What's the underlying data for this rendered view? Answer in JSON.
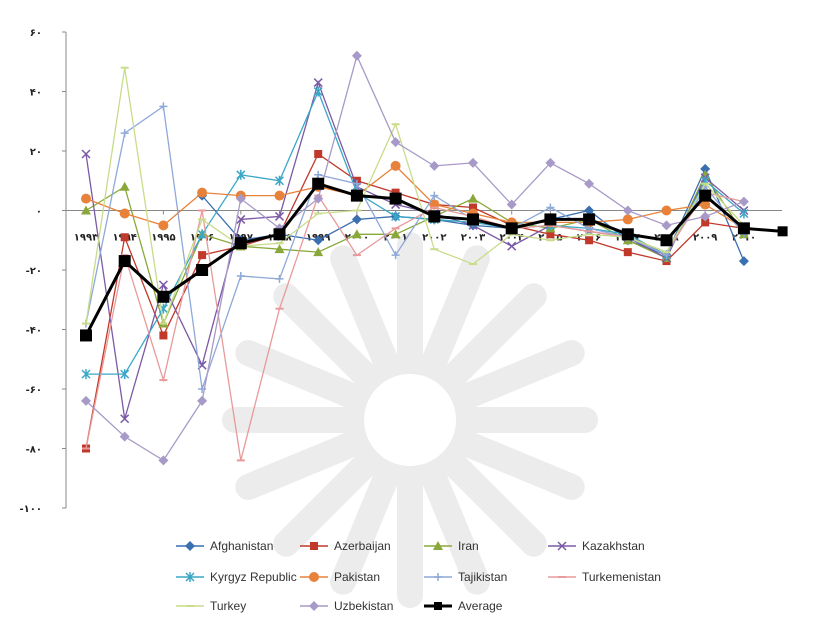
{
  "chart_data": {
    "type": "line",
    "title": "",
    "xlabel": "",
    "ylabel": "",
    "ylim": [
      -100,
      60
    ],
    "yticks": [
      60,
      40,
      20,
      0,
      -20,
      -40,
      -60,
      -80,
      -100
    ],
    "ytick_labels": [
      "۶۰",
      "۴۰",
      "۲۰",
      "۰",
      "-۲۰",
      "-۴۰",
      "-۶۰",
      "-۸۰",
      "-۱۰۰"
    ],
    "categories": [
      "1993",
      "1994",
      "1995",
      "1996",
      "1997",
      "1998",
      "1999",
      "2000",
      "2001",
      "2002",
      "2003",
      "2004",
      "2005",
      "2006",
      "2007",
      "2008",
      "2009",
      "2010"
    ],
    "category_labels": [
      "۱۹۹۳",
      "۱۹۹۴",
      "۱۹۹۵",
      "۱۹۹۶",
      "۱۹۹۷",
      "۱۹۹۸",
      "۱۹۹۹",
      "۲۰۰۰",
      "۲۰۰۱",
      "۲۰۰۲",
      "۲۰۰۳",
      "۲۰۰۴",
      "۲۰۰۵",
      "۲۰۰۶",
      "۲۰۰۷",
      "۲۰۰۸",
      "۲۰۰۹",
      "۲۰۱۰"
    ],
    "legend_position": "bottom",
    "grid": false,
    "series": [
      {
        "name": "Afghanistan",
        "color": "#3a6fb0",
        "marker": "diamond",
        "values": [
          null,
          null,
          null,
          5,
          -10,
          -8,
          -10,
          -3,
          -2,
          -3,
          -5,
          -6,
          -3,
          0,
          -10,
          -15,
          14,
          -17
        ]
      },
      {
        "name": "Azerbaijan",
        "color": "#c0392b",
        "marker": "square",
        "values": [
          -80,
          -9,
          -42,
          -15,
          -12,
          -8,
          19,
          10,
          6,
          2,
          1,
          -5,
          -8,
          -10,
          -14,
          -17,
          -4,
          -6
        ]
      },
      {
        "name": "Iran",
        "color": "#8aa83a",
        "marker": "triangle",
        "values": [
          0,
          8,
          -38,
          -8,
          -12,
          -13,
          -14,
          -8,
          -8,
          -2,
          4,
          -4,
          -6,
          -3,
          -10,
          -16,
          12,
          -8
        ]
      },
      {
        "name": "Kazakhstan",
        "color": "#7b5aa6",
        "marker": "x",
        "values": [
          19,
          -70,
          -25,
          -52,
          -3,
          -2,
          43,
          8,
          2,
          -1,
          -5,
          -12,
          -5,
          -7,
          -9,
          -16,
          11,
          0
        ]
      },
      {
        "name": "Kyrgyz Republic",
        "color": "#3aa7c6",
        "marker": "star",
        "values": [
          -55,
          -55,
          -33,
          -8,
          12,
          10,
          40,
          6,
          -2,
          -3,
          -4,
          -6,
          -5,
          -6,
          -8,
          -15,
          10,
          -1
        ]
      },
      {
        "name": "Pakistan",
        "color": "#e8823a",
        "marker": "circle",
        "values": [
          4,
          -1,
          -5,
          6,
          5,
          5,
          8,
          5,
          15,
          2,
          -1,
          -4,
          -4,
          -4,
          -3,
          0,
          2,
          -6
        ]
      },
      {
        "name": "Tajikistan",
        "color": "#8ea8d8",
        "marker": "plus",
        "values": [
          -38,
          26,
          35,
          -60,
          -22,
          -23,
          12,
          9,
          -15,
          5,
          -3,
          -6,
          1,
          -6,
          -9,
          -15,
          8,
          -8
        ]
      },
      {
        "name": "Turkemenistan",
        "color": "#e89a9a",
        "marker": "dash",
        "values": [
          -80,
          -15,
          -57,
          0,
          -84,
          -33,
          5,
          -15,
          -6,
          1,
          -2,
          -6,
          -5,
          -7,
          -9,
          -14,
          6,
          3
        ]
      },
      {
        "name": "Turkey",
        "color": "#c8dc8a",
        "marker": "dash",
        "values": [
          -38,
          48,
          -38,
          -3,
          -12,
          -11,
          -1,
          0,
          29,
          -13,
          -18,
          -8,
          -10,
          -8,
          -9,
          -14,
          9,
          -5
        ]
      },
      {
        "name": "Uzbekistan",
        "color": "#a89ac8",
        "marker": "diamond",
        "values": [
          -64,
          -76,
          -84,
          -64,
          4,
          -6,
          4,
          52,
          23,
          15,
          16,
          2,
          16,
          9,
          0,
          -5,
          -2,
          3
        ]
      },
      {
        "name": "Average",
        "color": "#000000",
        "marker": "square-big",
        "values": [
          -42,
          -17,
          -29,
          -20,
          -11,
          -8,
          9,
          5,
          4,
          -2,
          -3,
          -6,
          -3,
          -3,
          -8,
          -10,
          5,
          -6
        ]
      }
    ],
    "average_extra_point": -7
  }
}
